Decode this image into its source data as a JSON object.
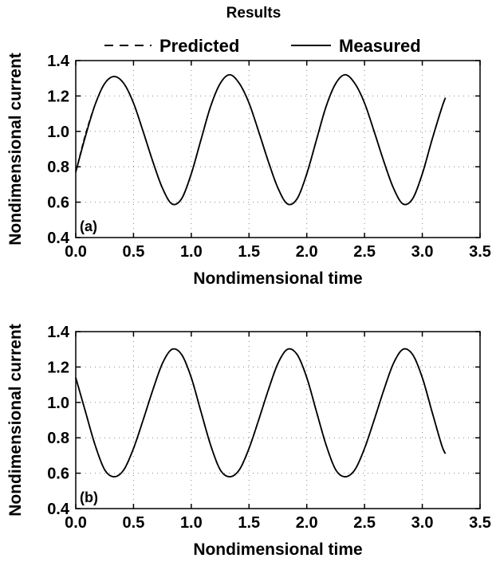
{
  "figure": {
    "title": "Results",
    "legend": [
      {
        "label": "Predicted",
        "style": "dashed"
      },
      {
        "label": "Measured",
        "style": "solid"
      }
    ]
  },
  "chart_data": [
    {
      "type": "line",
      "panel_label": "(a)",
      "xlabel": "Nondimensional time",
      "ylabel": "Nondimensional current",
      "xlim": [
        0.0,
        3.5
      ],
      "ylim": [
        0.4,
        1.4
      ],
      "x_ticks": [
        "0.0",
        "0.5",
        "1.0",
        "1.5",
        "2.0",
        "2.5",
        "3.0",
        "3.5"
      ],
      "y_ticks": [
        "0.4",
        "0.6",
        "0.8",
        "1.0",
        "1.2",
        "1.4"
      ],
      "grid": true,
      "series": [
        {
          "name": "Predicted",
          "style": "dashed",
          "x": [
            0.0,
            0.083,
            0.167,
            0.25,
            0.333,
            0.417,
            0.5,
            0.583,
            0.667,
            0.75,
            0.833,
            0.917,
            1.0,
            1.083,
            1.167,
            1.25,
            1.333,
            1.417,
            1.5,
            1.583,
            1.667,
            1.75,
            1.833,
            1.917,
            2.0,
            2.083,
            2.167,
            2.25,
            2.333,
            2.417,
            2.5,
            2.583,
            2.667,
            2.75,
            2.833,
            2.917,
            3.0,
            3.083,
            3.167,
            3.2
          ],
          "y": [
            0.77,
            0.98,
            1.15,
            1.27,
            1.31,
            1.27,
            1.16,
            1.0,
            0.83,
            0.68,
            0.59,
            0.62,
            0.76,
            0.95,
            1.14,
            1.27,
            1.32,
            1.27,
            1.16,
            1.0,
            0.83,
            0.68,
            0.59,
            0.62,
            0.76,
            0.95,
            1.14,
            1.27,
            1.32,
            1.27,
            1.16,
            1.0,
            0.83,
            0.68,
            0.59,
            0.62,
            0.76,
            0.95,
            1.13,
            1.19
          ]
        },
        {
          "name": "Measured",
          "style": "solid",
          "x": [
            0.0,
            0.083,
            0.167,
            0.25,
            0.333,
            0.417,
            0.5,
            0.583,
            0.667,
            0.75,
            0.833,
            0.917,
            1.0,
            1.083,
            1.167,
            1.25,
            1.333,
            1.417,
            1.5,
            1.583,
            1.667,
            1.75,
            1.833,
            1.917,
            2.0,
            2.083,
            2.167,
            2.25,
            2.333,
            2.417,
            2.5,
            2.583,
            2.667,
            2.75,
            2.833,
            2.917,
            3.0,
            3.083,
            3.167,
            3.2
          ],
          "y": [
            0.77,
            0.97,
            1.15,
            1.27,
            1.31,
            1.27,
            1.16,
            1.0,
            0.83,
            0.68,
            0.59,
            0.62,
            0.76,
            0.95,
            1.14,
            1.27,
            1.32,
            1.27,
            1.16,
            1.0,
            0.83,
            0.68,
            0.59,
            0.62,
            0.76,
            0.95,
            1.14,
            1.27,
            1.32,
            1.27,
            1.16,
            1.0,
            0.83,
            0.68,
            0.59,
            0.62,
            0.76,
            0.95,
            1.13,
            1.19
          ]
        }
      ]
    },
    {
      "type": "line",
      "panel_label": "(b)",
      "xlabel": "Nondimensional time",
      "ylabel": "Nondimensional current",
      "xlim": [
        0.0,
        3.5
      ],
      "ylim": [
        0.4,
        1.4
      ],
      "x_ticks": [
        "0.0",
        "0.5",
        "1.0",
        "1.5",
        "2.0",
        "2.5",
        "3.0",
        "3.5"
      ],
      "y_ticks": [
        "0.4",
        "0.6",
        "0.8",
        "1.0",
        "1.2",
        "1.4"
      ],
      "grid": true,
      "series": [
        {
          "name": "Predicted",
          "style": "dashed",
          "x": [
            0.0,
            0.083,
            0.167,
            0.25,
            0.333,
            0.417,
            0.5,
            0.583,
            0.667,
            0.75,
            0.833,
            0.917,
            1.0,
            1.083,
            1.167,
            1.25,
            1.333,
            1.417,
            1.5,
            1.583,
            1.667,
            1.75,
            1.833,
            1.917,
            2.0,
            2.083,
            2.167,
            2.25,
            2.333,
            2.417,
            2.5,
            2.583,
            2.667,
            2.75,
            2.833,
            2.917,
            3.0,
            3.083,
            3.167,
            3.2
          ],
          "y": [
            1.14,
            0.95,
            0.76,
            0.62,
            0.58,
            0.62,
            0.74,
            0.9,
            1.07,
            1.22,
            1.3,
            1.27,
            1.14,
            0.95,
            0.76,
            0.62,
            0.58,
            0.62,
            0.74,
            0.9,
            1.07,
            1.22,
            1.3,
            1.27,
            1.14,
            0.95,
            0.76,
            0.62,
            0.58,
            0.62,
            0.74,
            0.9,
            1.07,
            1.22,
            1.3,
            1.27,
            1.14,
            0.95,
            0.76,
            0.71
          ]
        },
        {
          "name": "Measured",
          "style": "solid",
          "x": [
            0.0,
            0.083,
            0.167,
            0.25,
            0.333,
            0.417,
            0.5,
            0.583,
            0.667,
            0.75,
            0.833,
            0.917,
            1.0,
            1.083,
            1.167,
            1.25,
            1.333,
            1.417,
            1.5,
            1.583,
            1.667,
            1.75,
            1.833,
            1.917,
            2.0,
            2.083,
            2.167,
            2.25,
            2.333,
            2.417,
            2.5,
            2.583,
            2.667,
            2.75,
            2.833,
            2.917,
            3.0,
            3.083,
            3.167,
            3.2
          ],
          "y": [
            1.14,
            0.95,
            0.76,
            0.62,
            0.58,
            0.62,
            0.74,
            0.9,
            1.07,
            1.22,
            1.3,
            1.27,
            1.14,
            0.95,
            0.76,
            0.62,
            0.58,
            0.62,
            0.74,
            0.9,
            1.07,
            1.22,
            1.3,
            1.27,
            1.14,
            0.95,
            0.76,
            0.62,
            0.58,
            0.62,
            0.74,
            0.9,
            1.07,
            1.22,
            1.3,
            1.27,
            1.14,
            0.95,
            0.76,
            0.71
          ]
        }
      ]
    }
  ]
}
